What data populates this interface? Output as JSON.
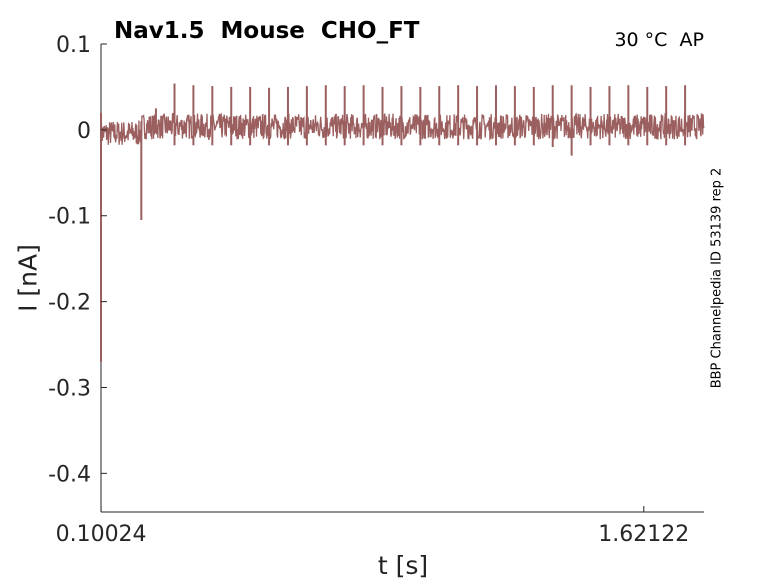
{
  "chart_data": {
    "type": "line",
    "title": "Nav1.5  Mouse  CHO_FT",
    "condition": "30 °C  AP",
    "source_label": "BBP Channelpedia ID 53139 rep 2",
    "xlabel": "t [s]",
    "ylabel": "I [nA]",
    "x_ticks": [
      "0.10024",
      "1.62122"
    ],
    "y_ticks": [
      "0.1",
      "0",
      "-0.1",
      "-0.2",
      "-0.3",
      "-0.4"
    ],
    "x_tick_values": [
      0.10024,
      1.62122
    ],
    "y_tick_values": [
      0.1,
      0,
      -0.1,
      -0.2,
      -0.3,
      -0.4
    ],
    "xlim": [
      0.1,
      1.79
    ],
    "ylim": [
      -0.445,
      0.1
    ],
    "grid": false,
    "series": [
      {
        "color": "#9B5F5F",
        "baseline_noise": 0.015,
        "onset_dip": {
          "x": 0.1,
          "y": -0.27
        },
        "events": [
          {
            "x": 0.213,
            "min": -0.105,
            "max": 0.01
          },
          {
            "x": 0.254,
            "min": -0.004,
            "max": 0.025
          },
          {
            "x": 0.306,
            "min": -0.018,
            "max": 0.054
          },
          {
            "x": 0.359,
            "min": -0.018,
            "max": 0.052
          },
          {
            "x": 0.412,
            "min": -0.018,
            "max": 0.051
          },
          {
            "x": 0.465,
            "min": -0.018,
            "max": 0.05
          },
          {
            "x": 0.518,
            "min": -0.018,
            "max": 0.05
          },
          {
            "x": 0.571,
            "min": -0.018,
            "max": 0.049
          },
          {
            "x": 0.624,
            "min": -0.018,
            "max": 0.05
          },
          {
            "x": 0.677,
            "min": -0.018,
            "max": 0.051
          },
          {
            "x": 0.73,
            "min": -0.018,
            "max": 0.052
          },
          {
            "x": 0.783,
            "min": -0.018,
            "max": 0.051
          },
          {
            "x": 0.836,
            "min": -0.018,
            "max": 0.052
          },
          {
            "x": 0.889,
            "min": -0.018,
            "max": 0.05
          },
          {
            "x": 0.942,
            "min": -0.018,
            "max": 0.051
          },
          {
            "x": 0.995,
            "min": -0.018,
            "max": 0.05
          },
          {
            "x": 1.048,
            "min": -0.018,
            "max": 0.051
          },
          {
            "x": 1.101,
            "min": -0.018,
            "max": 0.052
          },
          {
            "x": 1.154,
            "min": -0.018,
            "max": 0.051
          },
          {
            "x": 1.207,
            "min": -0.018,
            "max": 0.052
          },
          {
            "x": 1.26,
            "min": -0.018,
            "max": 0.051
          },
          {
            "x": 1.313,
            "min": -0.018,
            "max": 0.05
          },
          {
            "x": 1.366,
            "min": -0.02,
            "max": 0.052
          },
          {
            "x": 1.419,
            "min": -0.03,
            "max": 0.052
          },
          {
            "x": 1.472,
            "min": -0.018,
            "max": 0.05
          },
          {
            "x": 1.525,
            "min": -0.018,
            "max": 0.051
          },
          {
            "x": 1.578,
            "min": -0.018,
            "max": 0.052
          },
          {
            "x": 1.631,
            "min": -0.018,
            "max": 0.05
          },
          {
            "x": 1.684,
            "min": -0.018,
            "max": 0.051
          },
          {
            "x": 1.737,
            "min": -0.018,
            "max": 0.052
          }
        ]
      }
    ]
  }
}
